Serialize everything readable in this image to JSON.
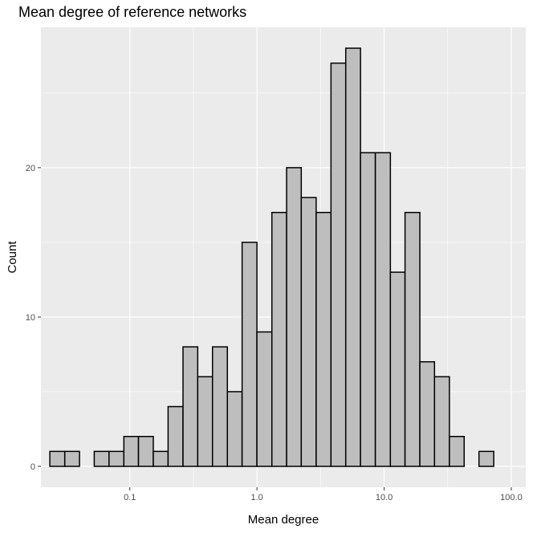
{
  "chart_data": {
    "type": "bar",
    "title": "Mean degree of reference networks",
    "xlabel": "Mean degree",
    "ylabel": "Count",
    "x_scale": "log10",
    "xlim": [
      0.02,
      130
    ],
    "ylim": [
      -1.4,
      29.4
    ],
    "x_ticks": [
      0.1,
      1.0,
      10.0,
      100.0
    ],
    "x_tick_labels": [
      "0.1",
      "1.0",
      "10.0",
      "100.0"
    ],
    "y_ticks": [
      0,
      10,
      20
    ],
    "y_tick_labels": [
      "0",
      "10",
      "20"
    ],
    "bins": [
      {
        "x_min": 0.0235,
        "x_max": 0.0308,
        "count": 1
      },
      {
        "x_min": 0.0308,
        "x_max": 0.0402,
        "count": 1
      },
      {
        "x_min": 0.0402,
        "x_max": 0.0525,
        "count": 0
      },
      {
        "x_min": 0.0525,
        "x_max": 0.0686,
        "count": 1
      },
      {
        "x_min": 0.0686,
        "x_max": 0.0898,
        "count": 1
      },
      {
        "x_min": 0.0898,
        "x_max": 0.117,
        "count": 2
      },
      {
        "x_min": 0.117,
        "x_max": 0.153,
        "count": 2
      },
      {
        "x_min": 0.153,
        "x_max": 0.2,
        "count": 1
      },
      {
        "x_min": 0.2,
        "x_max": 0.262,
        "count": 4
      },
      {
        "x_min": 0.262,
        "x_max": 0.342,
        "count": 8
      },
      {
        "x_min": 0.342,
        "x_max": 0.447,
        "count": 6
      },
      {
        "x_min": 0.447,
        "x_max": 0.585,
        "count": 8
      },
      {
        "x_min": 0.585,
        "x_max": 0.764,
        "count": 5
      },
      {
        "x_min": 0.764,
        "x_max": 0.999,
        "count": 15
      },
      {
        "x_min": 0.999,
        "x_max": 1.31,
        "count": 9
      },
      {
        "x_min": 1.31,
        "x_max": 1.71,
        "count": 17
      },
      {
        "x_min": 1.71,
        "x_max": 2.23,
        "count": 20
      },
      {
        "x_min": 2.23,
        "x_max": 2.92,
        "count": 18
      },
      {
        "x_min": 2.92,
        "x_max": 3.82,
        "count": 17
      },
      {
        "x_min": 3.82,
        "x_max": 4.99,
        "count": 27
      },
      {
        "x_min": 4.99,
        "x_max": 6.52,
        "count": 28
      },
      {
        "x_min": 6.52,
        "x_max": 8.53,
        "count": 21
      },
      {
        "x_min": 8.53,
        "x_max": 11.2,
        "count": 21
      },
      {
        "x_min": 11.2,
        "x_max": 14.6,
        "count": 13
      },
      {
        "x_min": 14.6,
        "x_max": 19.1,
        "count": 17
      },
      {
        "x_min": 19.1,
        "x_max": 24.9,
        "count": 7
      },
      {
        "x_min": 24.9,
        "x_max": 32.6,
        "count": 6
      },
      {
        "x_min": 32.6,
        "x_max": 42.6,
        "count": 2
      },
      {
        "x_min": 42.6,
        "x_max": 55.7,
        "count": 0
      },
      {
        "x_min": 55.7,
        "x_max": 72.8,
        "count": 1
      }
    ],
    "bar_fill": "#bebebe",
    "bar_stroke": "#000000",
    "panel_background": "#ebebeb",
    "grid_color": "#ffffff",
    "grid": true,
    "legend": "none"
  }
}
